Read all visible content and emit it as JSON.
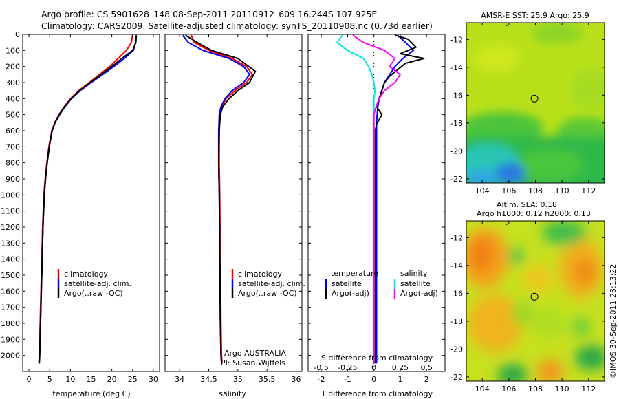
{
  "header": {
    "line1": "Argo profile: CS 5901628_148 08-Sep-2011 20110912_609 16.244S 107.925E",
    "line2": "Climatology: CARS2009. Satellite-adjusted climatology: synTS_20110908.nc (0.73d earlier)"
  },
  "colors": {
    "climatology": "#ff0000",
    "satellite": "#0000ff",
    "argo": "#000000",
    "salinity_satellite": "#00e5e5",
    "salinity_argo": "#ff00ff"
  },
  "chart_data": [
    {
      "type": "line",
      "xlabel": "temperature (deg C)",
      "ylabel": "",
      "xlim": [
        -1.5,
        31.5
      ],
      "ylim": [
        2100,
        0
      ],
      "xticks": [
        0,
        5,
        10,
        15,
        20,
        25,
        30
      ],
      "yticks": [
        0,
        100,
        200,
        300,
        400,
        500,
        600,
        700,
        800,
        900,
        1000,
        1100,
        1200,
        1300,
        1400,
        1500,
        1600,
        1700,
        1800,
        1900,
        2000
      ],
      "legend": [
        "climatology",
        "satellite-adj. clim.",
        "Argo(..raw -QC)"
      ],
      "series": [
        {
          "name": "climatology",
          "color": "#ff0000",
          "x": [
            25.0,
            24.7,
            23.5,
            21.5,
            19.5,
            17.0,
            14.5,
            12.0,
            10.0,
            8.5,
            7.2,
            6.2,
            5.5,
            4.8,
            4.3,
            3.9,
            3.6,
            3.3,
            3.1,
            2.9,
            2.7,
            2.5,
            2.4
          ],
          "y": [
            5,
            50,
            100,
            150,
            200,
            250,
            300,
            350,
            400,
            450,
            500,
            550,
            600,
            700,
            800,
            900,
            1000,
            1200,
            1400,
            1600,
            1800,
            2000,
            2050
          ]
        },
        {
          "name": "satellite-adj. clim.",
          "color": "#0000ff",
          "x": [
            25.9,
            25.7,
            25.2,
            23.0,
            20.5,
            17.8,
            15.0,
            12.4,
            10.3,
            8.7,
            7.4,
            6.3,
            5.6,
            4.9,
            4.4,
            4.0,
            3.7,
            3.4,
            3.2,
            3.0,
            2.8,
            2.6,
            2.5
          ],
          "y": [
            5,
            50,
            100,
            150,
            200,
            250,
            300,
            350,
            400,
            450,
            500,
            550,
            600,
            700,
            800,
            900,
            1000,
            1200,
            1400,
            1600,
            1800,
            2000,
            2050
          ]
        },
        {
          "name": "Argo(..raw -QC)",
          "color": "#000000",
          "x": [
            25.9,
            25.8,
            25.0,
            22.4,
            20.0,
            17.4,
            14.8,
            12.2,
            10.2,
            8.6,
            7.3,
            6.3,
            5.6,
            4.9,
            4.4,
            4.0,
            3.7,
            3.4,
            3.2,
            3.0,
            2.8,
            2.6,
            2.5
          ],
          "y": [
            5,
            50,
            100,
            150,
            200,
            250,
            300,
            350,
            400,
            450,
            500,
            550,
            600,
            700,
            800,
            900,
            1000,
            1200,
            1400,
            1600,
            1800,
            2000,
            2050
          ]
        }
      ]
    },
    {
      "type": "line",
      "xlabel": "salinity",
      "xlim": [
        33.75,
        36.1
      ],
      "ylim": [
        2100,
        0
      ],
      "xticks": [
        34,
        34.5,
        35,
        35.5,
        36
      ],
      "legend": [
        "climatology",
        "satellite-adj. clim.",
        "Argo(..raw -QC)"
      ],
      "annotations": [
        "Argo AUSTRALIA",
        "PI: Susan Wijffels"
      ],
      "series": [
        {
          "name": "climatology",
          "color": "#ff0000",
          "x": [
            34.2,
            34.25,
            34.5,
            34.9,
            35.15,
            35.25,
            35.15,
            34.95,
            34.8,
            34.72,
            34.69,
            34.68,
            34.68,
            34.69,
            34.7,
            34.71,
            34.72,
            34.73
          ],
          "y": [
            5,
            50,
            100,
            150,
            200,
            250,
            300,
            350,
            400,
            450,
            500,
            600,
            800,
            1000,
            1400,
            1800,
            2000,
            2050
          ]
        },
        {
          "name": "satellite-adj. clim.",
          "color": "#0000ff",
          "x": [
            34.05,
            34.15,
            34.4,
            34.85,
            35.1,
            35.2,
            35.1,
            34.9,
            34.78,
            34.71,
            34.68,
            34.67,
            34.67,
            34.68,
            34.69,
            34.7,
            34.71,
            34.72
          ],
          "y": [
            5,
            50,
            100,
            150,
            200,
            250,
            300,
            350,
            400,
            450,
            500,
            600,
            800,
            1000,
            1400,
            1800,
            2000,
            2050
          ]
        },
        {
          "name": "Argo(..raw -QC)",
          "color": "#000000",
          "x": [
            34.1,
            34.3,
            34.55,
            35.0,
            35.3,
            35.2,
            35.0,
            34.85,
            34.74,
            34.7,
            34.68,
            34.67,
            34.68,
            34.69,
            34.7,
            34.71,
            34.72
          ],
          "y": [
            5,
            50,
            100,
            150,
            230,
            300,
            350,
            400,
            450,
            500,
            600,
            800,
            1000,
            1400,
            1800,
            2000,
            2050
          ]
        }
      ]
    },
    {
      "type": "line",
      "title_top": "S difference from climatology",
      "xlabel": "T difference from climatology",
      "xlim": [
        -2.5,
        2.7
      ],
      "ylim": [
        2100,
        0
      ],
      "xticks": [
        -2,
        -1,
        0,
        1,
        2
      ],
      "xticks_top": [
        -0.5,
        -0.25,
        0,
        0.25,
        0.5
      ],
      "legend_temperature": {
        "header": "temperature",
        "entries": [
          "satellite",
          "Argo(-adj)"
        ]
      },
      "legend_salinity": {
        "header": "salinity",
        "entries": [
          "satellite",
          "Argo(-adj)"
        ]
      },
      "series": [
        {
          "name": "temperature satellite",
          "color": "#0000ff",
          "x": [
            0.9,
            1.2,
            1.5,
            1.1,
            0.8,
            0.6,
            0.4,
            0.3,
            0.2,
            0.15,
            0.12,
            0.1,
            0.1,
            0.1,
            0.1,
            0.1,
            0.1,
            0.1,
            0.1
          ],
          "y": [
            5,
            50,
            100,
            150,
            200,
            250,
            300,
            350,
            400,
            450,
            500,
            550,
            600,
            700,
            800,
            1000,
            1400,
            1800,
            2050
          ]
        },
        {
          "name": "temperature Argo(-adj)",
          "color": "#000000",
          "x": [
            0.8,
            1.3,
            1.6,
            1.0,
            1.9,
            1.2,
            0.9,
            0.6,
            0.4,
            0.3,
            0.2,
            0.1,
            0.3,
            0.1,
            0.05,
            0.05,
            0.05,
            0.05,
            0.05
          ],
          "y": [
            5,
            30,
            80,
            120,
            150,
            180,
            220,
            260,
            300,
            350,
            400,
            450,
            500,
            560,
            600,
            800,
            1000,
            1500,
            2050
          ]
        },
        {
          "name": "salinity satellite",
          "color": "#00e5e5",
          "x": [
            -0.3,
            -0.35,
            -0.25,
            -0.1,
            -0.05,
            -0.02,
            0,
            0.01,
            0,
            0,
            0,
            0,
            0,
            0,
            0,
            0,
            0
          ],
          "y": [
            5,
            50,
            100,
            150,
            200,
            250,
            300,
            350,
            400,
            450,
            500,
            600,
            800,
            1000,
            1400,
            1800,
            2050
          ]
        },
        {
          "name": "salinity Argo(-adj)",
          "color": "#ff00ff",
          "x": [
            -0.2,
            -0.1,
            0.1,
            0.2,
            0.15,
            0.25,
            0.2,
            0.1,
            0.05,
            0.02,
            0,
            0,
            0,
            0,
            0,
            0,
            0
          ],
          "y": [
            5,
            50,
            100,
            150,
            200,
            250,
            300,
            350,
            400,
            450,
            500,
            600,
            800,
            1000,
            1400,
            1800,
            2050
          ]
        }
      ]
    },
    {
      "type": "heatmap",
      "title": "AMSR-E SST: 25.9 Argo: 25.9",
      "xlim": [
        102.8,
        113.2
      ],
      "ylim": [
        -22.3,
        -10.8
      ],
      "xticks": [
        104,
        106,
        108,
        110,
        112
      ],
      "yticks": [
        -12,
        -14,
        -16,
        -18,
        -20,
        -22
      ],
      "marker": {
        "lon": 107.925,
        "lat": -16.244
      }
    },
    {
      "type": "heatmap",
      "title_line1": "Altim. SLA: 0.18",
      "title_line2": "Argo h1000: 0.12 h2000: 0.13",
      "xlim": [
        102.8,
        113.2
      ],
      "ylim": [
        -22.3,
        -10.8
      ],
      "xticks": [
        104,
        106,
        108,
        110,
        112
      ],
      "yticks": [
        -12,
        -14,
        -16,
        -18,
        -20,
        -22
      ],
      "marker": {
        "lon": 107.925,
        "lat": -16.244
      }
    }
  ],
  "watermark": "©IMOS 30-Sep-2011 23:13:22"
}
